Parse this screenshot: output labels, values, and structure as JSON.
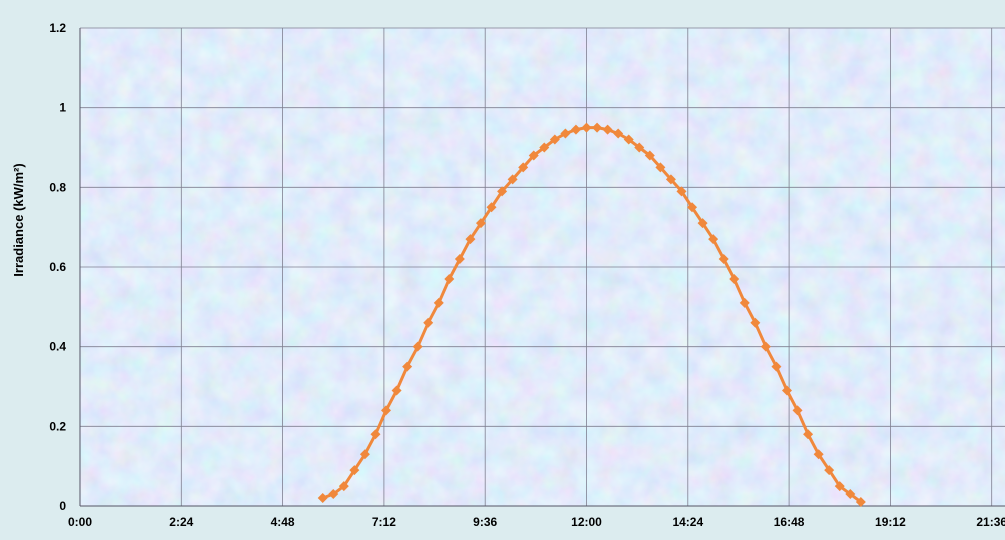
{
  "chart_data": {
    "type": "line",
    "title": "",
    "xlabel": "",
    "ylabel": "Irradiance (kW/m²)",
    "xlim": [
      "0:00",
      "21:36"
    ],
    "ylim": [
      0,
      1.2
    ],
    "x_tick_labels": [
      "0:00",
      "2:24",
      "4:48",
      "7:12",
      "9:36",
      "12:00",
      "14:24",
      "16:48",
      "19:12",
      "21:36"
    ],
    "y_tick_labels": [
      "0",
      "0.2",
      "0.4",
      "0.6",
      "0.8",
      "1",
      "1.2"
    ],
    "grid": true,
    "legend": "none",
    "series": [
      {
        "color": "#f0883c",
        "marker": "diamond",
        "x": [
          "5:45",
          "6:00",
          "6:15",
          "6:30",
          "6:45",
          "7:00",
          "7:15",
          "7:30",
          "7:45",
          "8:00",
          "8:15",
          "8:30",
          "8:45",
          "9:00",
          "9:15",
          "9:30",
          "9:45",
          "10:00",
          "10:15",
          "10:30",
          "10:45",
          "11:00",
          "11:15",
          "11:30",
          "11:45",
          "12:00",
          "12:15",
          "12:30",
          "12:45",
          "13:00",
          "13:15",
          "13:30",
          "13:45",
          "14:00",
          "14:15",
          "14:30",
          "14:45",
          "15:00",
          "15:15",
          "15:30",
          "15:45",
          "16:00",
          "16:15",
          "16:30",
          "16:45",
          "17:00",
          "17:15",
          "17:30",
          "17:45",
          "18:00",
          "18:15",
          "18:30"
        ],
        "values": [
          0.02,
          0.03,
          0.05,
          0.09,
          0.13,
          0.18,
          0.24,
          0.29,
          0.35,
          0.4,
          0.46,
          0.51,
          0.57,
          0.62,
          0.67,
          0.71,
          0.75,
          0.79,
          0.82,
          0.85,
          0.88,
          0.9,
          0.92,
          0.935,
          0.945,
          0.95,
          0.95,
          0.945,
          0.935,
          0.92,
          0.9,
          0.88,
          0.85,
          0.82,
          0.79,
          0.75,
          0.71,
          0.67,
          0.62,
          0.57,
          0.51,
          0.46,
          0.4,
          0.35,
          0.29,
          0.24,
          0.18,
          0.13,
          0.09,
          0.05,
          0.03,
          0.01
        ]
      }
    ]
  },
  "colors": {
    "background": "#dcecef",
    "plot_area": "#c6d9f0",
    "grid": "#7f7f90",
    "line": "#f0883c"
  }
}
